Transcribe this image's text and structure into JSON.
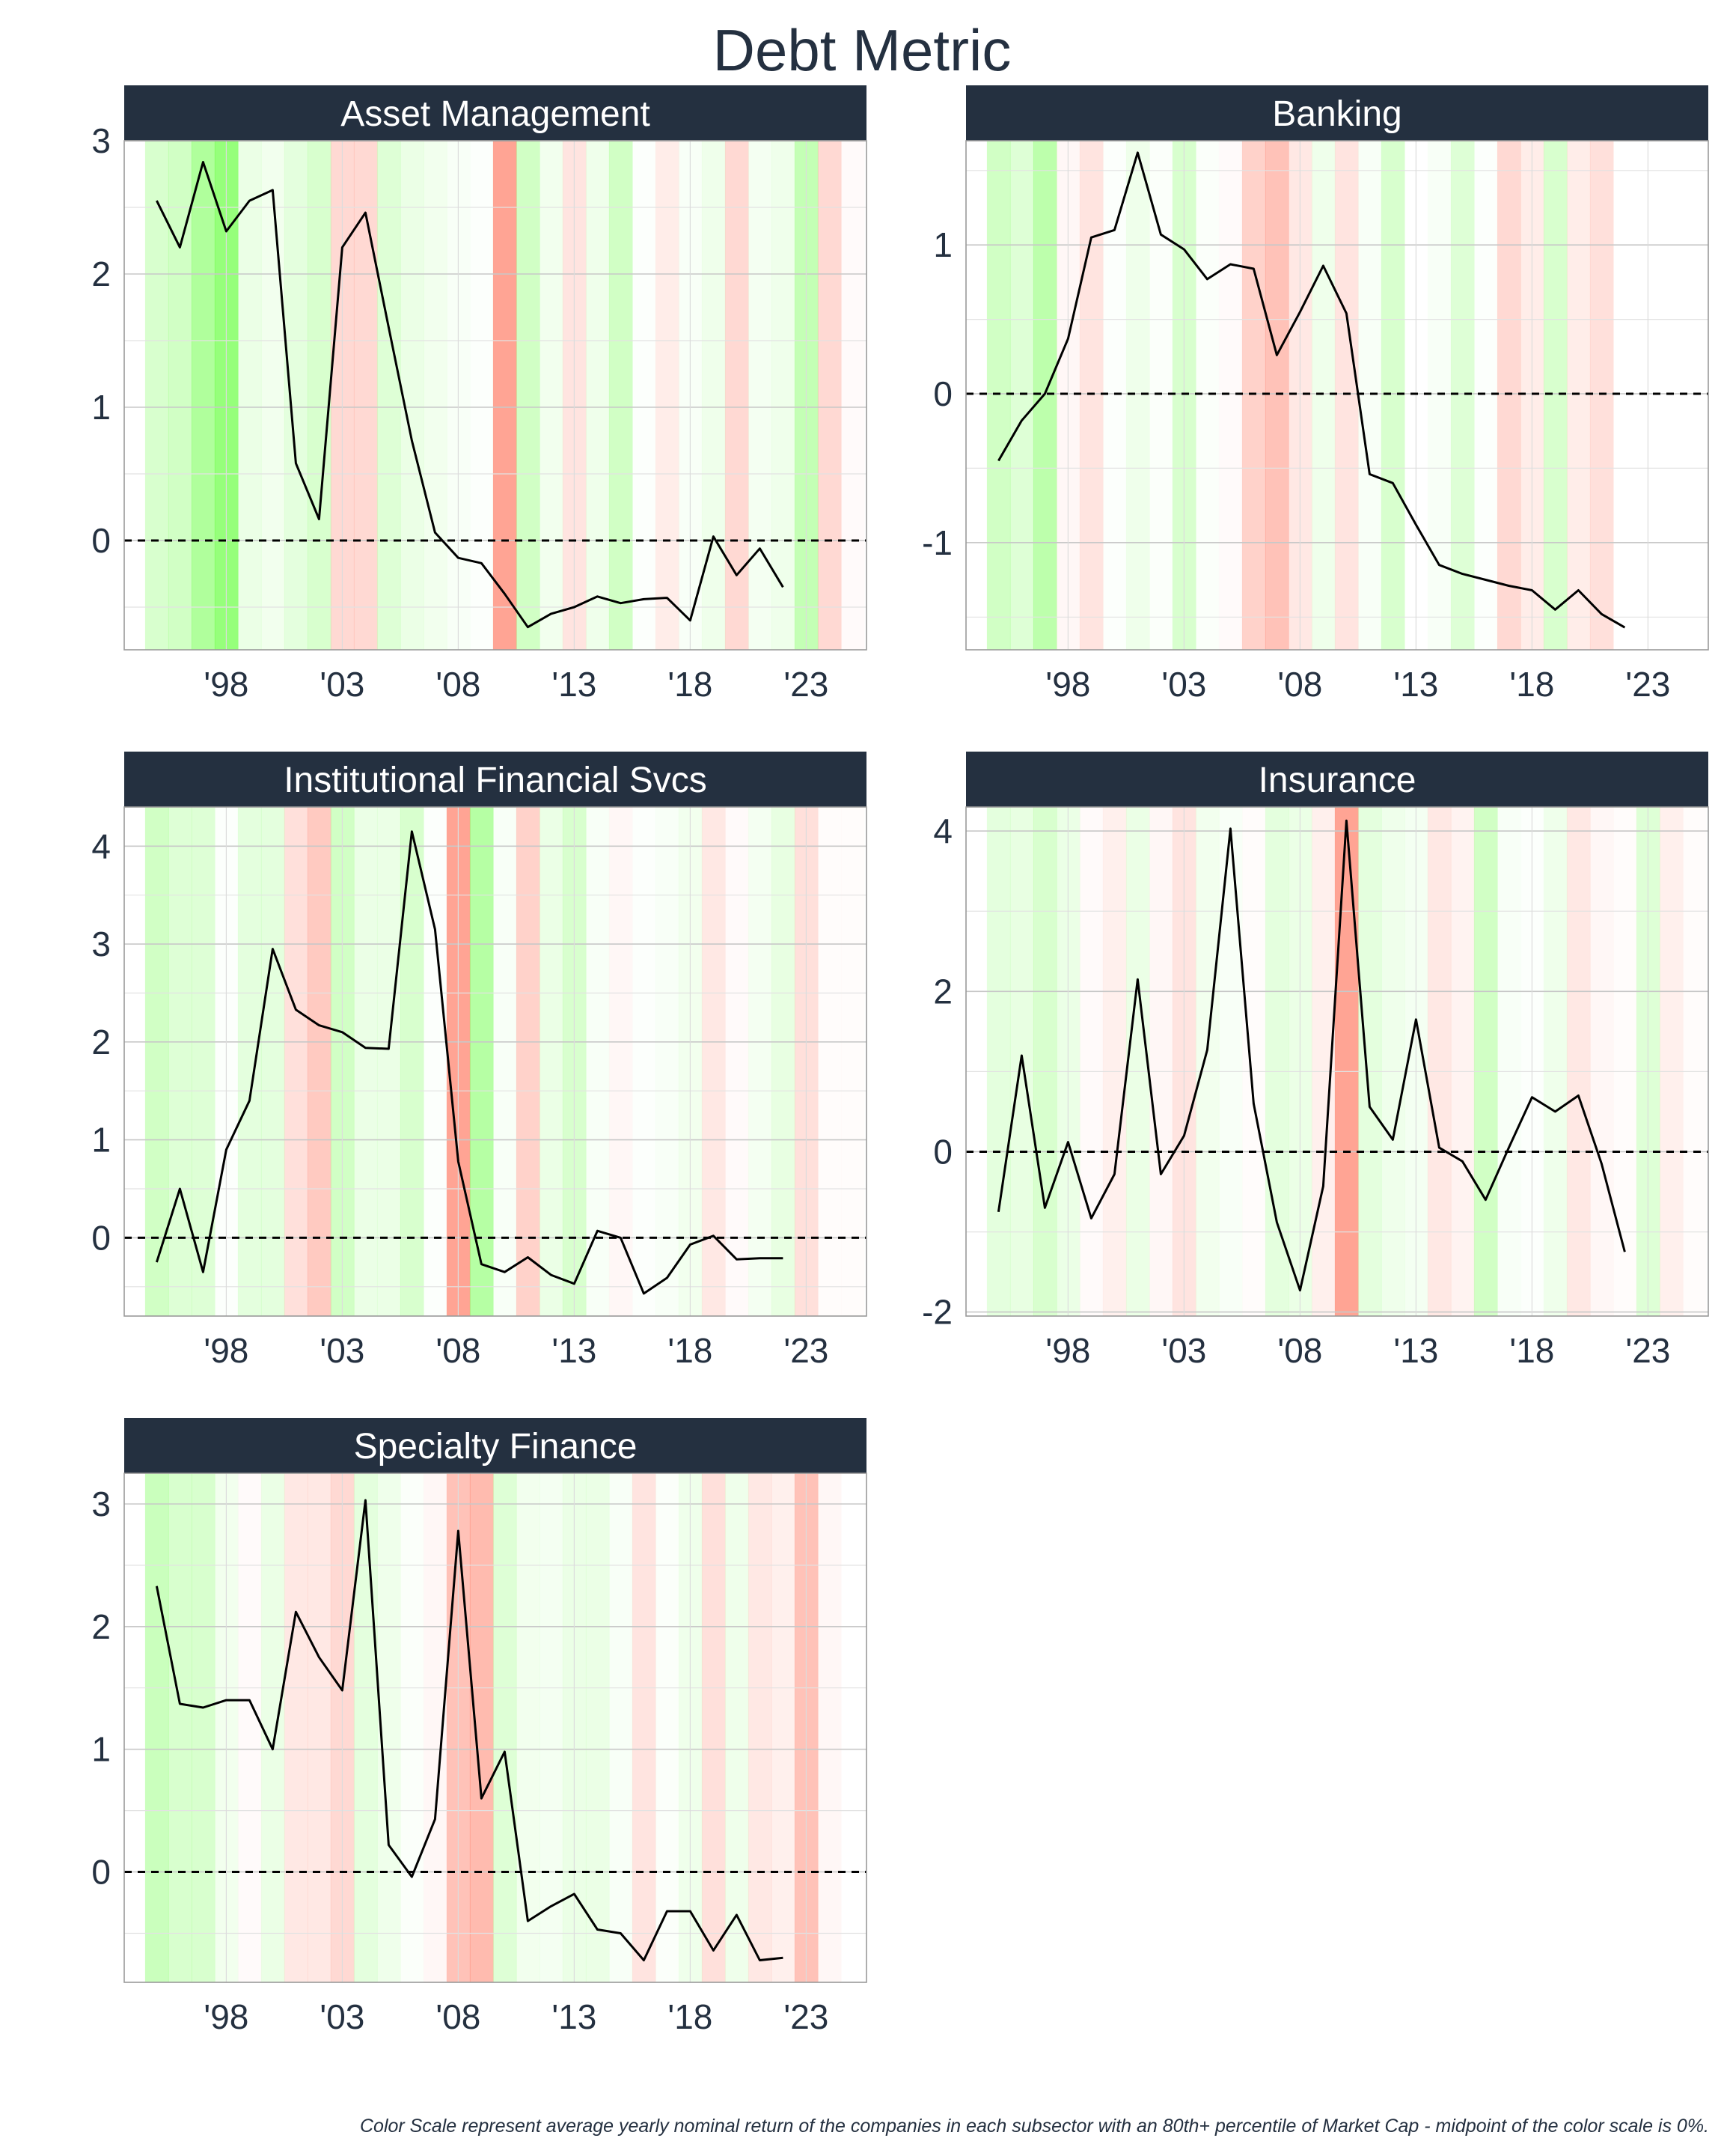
{
  "title": "Debt Metric",
  "footnote": "Color Scale represent average yearly nominal return of the companies in each subsector with an 80th+ percentile of Market Cap - midpoint of the color scale is 0%.",
  "colors": {
    "header_bg": "#243040",
    "header_text": "#ffffff",
    "text": "#243040",
    "line": "#000000",
    "positive": "#55ff2a",
    "negative": "#ff3b1a"
  },
  "chart_data": [
    {
      "type": "line",
      "title": "Asset Management",
      "x_tick_labels": [
        "'98",
        "'03",
        "'08",
        "'13",
        "'18",
        "'23"
      ],
      "x_ticks": [
        1998,
        2003,
        2008,
        2013,
        2018,
        2023
      ],
      "xlim": [
        1993.6,
        2025.6
      ],
      "ylim": [
        -0.82,
        3.0
      ],
      "y_ticks": [
        0,
        1,
        2,
        3
      ],
      "x": [
        1995,
        1996,
        1997,
        1998,
        1999,
        2000,
        2001,
        2002,
        2003,
        2004,
        2005,
        2006,
        2007,
        2008,
        2009,
        2010,
        2011,
        2012,
        2013,
        2014,
        2015,
        2016,
        2017,
        2018,
        2019,
        2020,
        2021,
        2022
      ],
      "values": [
        2.55,
        2.2,
        2.84,
        2.32,
        2.55,
        2.63,
        0.58,
        0.16,
        2.2,
        2.46,
        1.6,
        0.75,
        0.06,
        -0.13,
        -0.17,
        -0.4,
        -0.65,
        -0.55,
        -0.5,
        -0.42,
        -0.47,
        -0.44,
        -0.43,
        -0.6,
        0.03,
        -0.26,
        -0.06,
        -0.35
      ],
      "bands": [
        0.3,
        0.35,
        0.6,
        0.8,
        0.15,
        0.1,
        0.2,
        0.3,
        -0.25,
        -0.25,
        0.25,
        0.15,
        0.1,
        0.05,
        0.02,
        -0.6,
        0.35,
        0.1,
        -0.18,
        0.12,
        0.35,
        0.02,
        -0.12,
        0.05,
        0.12,
        -0.25,
        0.08,
        0.12,
        0.45,
        -0.25,
        -0.03
      ]
    },
    {
      "type": "line",
      "title": "Banking",
      "x_tick_labels": [
        "'98",
        "'03",
        "'08",
        "'13",
        "'18",
        "'23"
      ],
      "x_ticks": [
        1998,
        2003,
        2008,
        2013,
        2018,
        2023
      ],
      "xlim": [
        1993.6,
        2025.6
      ],
      "ylim": [
        -1.72,
        1.7
      ],
      "y_ticks": [
        -1,
        0,
        1
      ],
      "x": [
        1995,
        1996,
        1997,
        1998,
        1999,
        2000,
        2001,
        2002,
        2003,
        2004,
        2005,
        2006,
        2007,
        2008,
        2009,
        2010,
        2011,
        2012,
        2013,
        2014,
        2015,
        2016,
        2017,
        2018,
        2019,
        2020,
        2021,
        2022
      ],
      "values": [
        -0.45,
        -0.18,
        0.0,
        0.37,
        1.05,
        1.1,
        1.62,
        1.07,
        0.97,
        0.77,
        0.87,
        0.84,
        0.26,
        0.55,
        0.86,
        0.54,
        -0.54,
        -0.6,
        -0.88,
        -1.15,
        -1.21,
        -1.25,
        -1.29,
        -1.32,
        -1.45,
        -1.32,
        -1.48,
        -1.57
      ],
      "bands": [
        0.35,
        0.25,
        0.5,
        -0.05,
        -0.18,
        0.02,
        0.12,
        0.03,
        0.3,
        0.03,
        -0.03,
        -0.3,
        -0.4,
        -0.15,
        0.12,
        -0.18,
        0.05,
        0.3,
        0.0,
        0.05,
        0.25,
        0.02,
        -0.25,
        -0.12,
        0.3,
        -0.12,
        -0.2
      ]
    },
    {
      "type": "line",
      "title": "Institutional Financial Svcs",
      "x_tick_labels": [
        "'98",
        "'03",
        "'08",
        "'13",
        "'18",
        "'23"
      ],
      "x_ticks": [
        1998,
        2003,
        2008,
        2013,
        2018,
        2023
      ],
      "xlim": [
        1993.6,
        2025.6
      ],
      "ylim": [
        -0.8,
        4.4
      ],
      "y_ticks": [
        0,
        1,
        2,
        3,
        4
      ],
      "x": [
        1995,
        1996,
        1997,
        1998,
        1999,
        2000,
        2001,
        2002,
        2003,
        2004,
        2005,
        2006,
        2007,
        2008,
        2009,
        2010,
        2011,
        2012,
        2013,
        2014,
        2015,
        2016,
        2017,
        2018,
        2019,
        2020,
        2021,
        2022
      ],
      "values": [
        -0.25,
        0.5,
        -0.35,
        0.9,
        1.4,
        2.95,
        2.33,
        2.17,
        2.1,
        1.94,
        1.93,
        4.15,
        3.15,
        0.78,
        -0.27,
        -0.35,
        -0.2,
        -0.38,
        -0.47,
        0.07,
        0.0,
        -0.57,
        -0.41,
        -0.07,
        0.02,
        -0.22,
        -0.21,
        -0.21
      ],
      "bands": [
        0.35,
        0.25,
        0.25,
        0.02,
        0.2,
        0.2,
        -0.2,
        -0.35,
        0.35,
        0.15,
        0.15,
        0.3,
        0.02,
        -0.6,
        0.55,
        0.05,
        -0.3,
        0.15,
        0.3,
        0.05,
        -0.05,
        0.02,
        0.05,
        0.1,
        -0.15,
        -0.03,
        0.08,
        0.18,
        -0.2,
        -0.02,
        -0.02
      ]
    },
    {
      "type": "line",
      "title": "Insurance",
      "x_tick_labels": [
        "'98",
        "'03",
        "'08",
        "'13",
        "'18",
        "'23"
      ],
      "x_ticks": [
        1998,
        2003,
        2008,
        2013,
        2018,
        2023
      ],
      "xlim": [
        1993.6,
        2025.6
      ],
      "ylim": [
        -2.05,
        4.3
      ],
      "y_ticks": [
        -2,
        0,
        2,
        4
      ],
      "x": [
        1995,
        1996,
        1997,
        1998,
        1999,
        2000,
        2001,
        2002,
        2003,
        2004,
        2005,
        2006,
        2007,
        2008,
        2009,
        2010,
        2011,
        2012,
        2013,
        2014,
        2015,
        2016,
        2017,
        2018,
        2019,
        2020,
        2021,
        2022
      ],
      "values": [
        -0.75,
        1.2,
        -0.7,
        0.12,
        -0.83,
        -0.28,
        2.15,
        -0.28,
        0.2,
        1.27,
        4.03,
        0.6,
        -0.88,
        -1.73,
        -0.43,
        4.13,
        0.56,
        0.15,
        1.65,
        0.05,
        -0.12,
        -0.6,
        0.05,
        0.68,
        0.5,
        0.7,
        -0.15,
        -1.25
      ],
      "bands": [
        0.2,
        0.18,
        0.3,
        0.15,
        -0.03,
        -0.1,
        0.15,
        -0.05,
        -0.18,
        0.1,
        0.05,
        -0.02,
        0.2,
        0.15,
        -0.1,
        -0.6,
        0.2,
        0.12,
        0.08,
        -0.15,
        -0.08,
        0.35,
        0.05,
        0.02,
        0.12,
        -0.15,
        -0.05,
        -0.02,
        0.25,
        -0.1,
        -0.02
      ]
    },
    {
      "type": "line",
      "title": "Specialty Finance",
      "x_tick_labels": [
        "'98",
        "'03",
        "'08",
        "'13",
        "'18",
        "'23"
      ],
      "x_ticks": [
        1998,
        2003,
        2008,
        2013,
        2018,
        2023
      ],
      "xlim": [
        1993.6,
        2025.6
      ],
      "ylim": [
        -0.9,
        3.25
      ],
      "y_ticks": [
        0,
        1,
        2,
        3
      ],
      "x": [
        1995,
        1996,
        1997,
        1998,
        1999,
        2000,
        2001,
        2002,
        2003,
        2004,
        2005,
        2006,
        2007,
        2008,
        2009,
        2010,
        2011,
        2012,
        2013,
        2014,
        2015,
        2016,
        2017,
        2018,
        2019,
        2020,
        2021,
        2022
      ],
      "values": [
        2.33,
        1.37,
        1.34,
        1.4,
        1.4,
        1.0,
        2.12,
        1.75,
        1.48,
        3.03,
        0.22,
        -0.04,
        0.43,
        2.78,
        0.6,
        0.98,
        -0.4,
        -0.28,
        -0.18,
        -0.47,
        -0.5,
        -0.72,
        -0.32,
        -0.32,
        -0.64,
        -0.35,
        -0.72,
        -0.7
      ],
      "bands": [
        0.4,
        0.3,
        0.3,
        0.1,
        -0.03,
        0.15,
        -0.15,
        -0.15,
        -0.25,
        0.2,
        0.12,
        0.03,
        -0.05,
        -0.4,
        -0.45,
        0.25,
        0.1,
        0.08,
        0.15,
        0.15,
        0.05,
        -0.18,
        0.03,
        0.12,
        -0.2,
        0.12,
        -0.15,
        -0.1,
        -0.4,
        -0.05
      ]
    }
  ]
}
